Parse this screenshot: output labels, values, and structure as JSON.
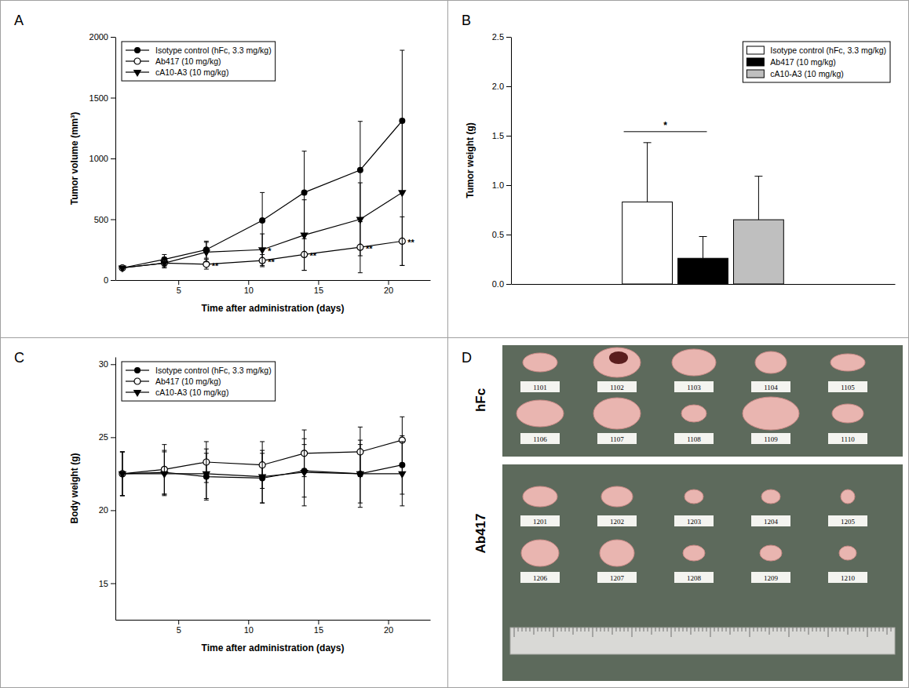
{
  "chart_data": [
    {
      "type": "line",
      "panel_label": "A",
      "x_label": "Time after administration (days)",
      "y_label": "Tumor volume (mm³)",
      "x": [
        1,
        4,
        7,
        11,
        14,
        18,
        21
      ],
      "xlim": [
        0.5,
        23
      ],
      "xticks": [
        5,
        10,
        15,
        20
      ],
      "ylim": [
        0,
        2000
      ],
      "yticks": [
        0,
        500,
        1000,
        1500,
        2000
      ],
      "legend": "upper left",
      "series": [
        {
          "name": "Isotype control (hFc, 3.3 mg/kg)",
          "color": "#000000",
          "marker": "circle",
          "values": [
            100,
            170,
            250,
            490,
            720,
            905,
            1310
          ],
          "errors": [
            0,
            40,
            70,
            230,
            340,
            400,
            580
          ]
        },
        {
          "name": "Ab417 (10 mg/kg)",
          "color": "#000000",
          "marker": "circle-open",
          "values": [
            100,
            140,
            130,
            160,
            210,
            270,
            320
          ],
          "errors": [
            0,
            30,
            40,
            50,
            130,
            210,
            200
          ],
          "significance": [
            null,
            null,
            "**",
            "**",
            "**",
            "**",
            "**"
          ]
        },
        {
          "name": "cA10-A3 (10 mg/kg)",
          "color": "#000000",
          "marker": "triangle-down",
          "values": [
            100,
            140,
            230,
            250,
            370,
            500,
            720
          ],
          "errors": [
            0,
            40,
            80,
            130,
            290,
            300,
            600
          ],
          "significance": [
            null,
            null,
            null,
            "*",
            null,
            null,
            null
          ]
        }
      ]
    },
    {
      "type": "bar",
      "panel_label": "B",
      "y_label": "Tumor weight (g)",
      "categories": [
        null
      ],
      "ylim": [
        0,
        2.5
      ],
      "yticks": [
        {
          "value": 0,
          "label": "0.0"
        },
        {
          "value": 0.5,
          "label": "0.5"
        },
        {
          "value": 1,
          "label": "1.0"
        },
        {
          "value": 1.5,
          "label": "1.5"
        },
        {
          "value": 2,
          "label": "2.0"
        },
        {
          "value": 2.5,
          "label": "2.5"
        }
      ],
      "legend": "upper right",
      "series": [
        {
          "name": "Isotype control (hFc, 3.3 mg/kg)",
          "color": "#ffffff",
          "values": [
            0.83
          ],
          "errors": [
            0.6
          ]
        },
        {
          "name": "Ab417 (10 mg/kg)",
          "color": "#000000",
          "values": [
            0.26
          ],
          "errors": [
            0.22
          ]
        },
        {
          "name": "cA10-A3 (10 mg/kg)",
          "color": "#bfbfbf",
          "values": [
            0.65
          ],
          "errors": [
            0.44
          ]
        }
      ],
      "comparisons": [
        {
          "series": [
            0,
            1
          ],
          "label": "*"
        }
      ]
    },
    {
      "type": "line",
      "panel_label": "C",
      "x_label": "Time after administration (days)",
      "y_label": "Body weight (g)",
      "x": [
        1,
        4,
        7,
        11,
        14,
        18,
        21
      ],
      "xlim": [
        0.5,
        23
      ],
      "xticks": [
        5,
        10,
        15,
        20
      ],
      "ylim": [
        12.5,
        30.5
      ],
      "yticks": [
        15,
        20,
        25,
        30
      ],
      "legend": "upper left",
      "series": [
        {
          "name": "Isotype control (hFc, 3.3 mg/kg)",
          "color": "#000000",
          "marker": "circle",
          "values": [
            22.5,
            22.6,
            22.3,
            22.2,
            22.7,
            22.5,
            23.1
          ],
          "errors": [
            1.5,
            1.5,
            1.6,
            1.7,
            1.8,
            2.0,
            2.0
          ]
        },
        {
          "name": "Ab417 (10 mg/kg)",
          "color": "#000000",
          "marker": "circle-open",
          "values": [
            22.5,
            22.8,
            23.3,
            23.1,
            23.9,
            24.0,
            24.8
          ],
          "errors": [
            1.5,
            1.7,
            1.4,
            1.6,
            1.6,
            1.7,
            1.6
          ]
        },
        {
          "name": "cA10-A3 (10 mg/kg)",
          "color": "#000000",
          "marker": "triangle-down",
          "values": [
            22.5,
            22.5,
            22.5,
            22.3,
            22.6,
            22.5,
            22.5
          ],
          "errors": [
            1.5,
            1.5,
            1.7,
            1.8,
            2.3,
            2.3,
            2.2
          ]
        }
      ]
    }
  ],
  "specimen_photo": {
    "panel_label": "D",
    "groups": [
      {
        "name": "hFc",
        "labels": [
          "1101",
          "1102",
          "1103",
          "1104",
          "1105",
          "1106",
          "1107",
          "1108",
          "1109",
          "1110"
        ]
      },
      {
        "name": "Ab417",
        "labels": [
          "1201",
          "1202",
          "1203",
          "1204",
          "1205",
          "1206",
          "1207",
          "1208",
          "1209",
          "1210"
        ]
      }
    ]
  }
}
